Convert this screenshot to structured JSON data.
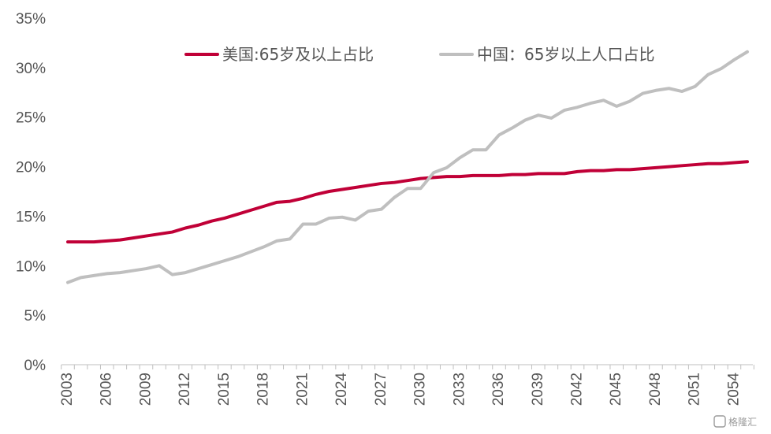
{
  "chart_data": {
    "type": "line",
    "title": "",
    "xlabel": "",
    "ylabel": "",
    "x": [
      2003,
      2004,
      2005,
      2006,
      2007,
      2008,
      2009,
      2010,
      2011,
      2012,
      2013,
      2014,
      2015,
      2016,
      2017,
      2018,
      2019,
      2020,
      2021,
      2022,
      2023,
      2024,
      2025,
      2026,
      2027,
      2028,
      2029,
      2030,
      2031,
      2032,
      2033,
      2034,
      2035,
      2036,
      2037,
      2038,
      2039,
      2040,
      2041,
      2042,
      2043,
      2044,
      2045,
      2046,
      2047,
      2048,
      2049,
      2050,
      2051,
      2052,
      2053,
      2054,
      2055
    ],
    "xticks": [
      "2003",
      "2006",
      "2009",
      "2012",
      "2015",
      "2018",
      "2021",
      "2024",
      "2027",
      "2030",
      "2033",
      "2036",
      "2039",
      "2042",
      "2045",
      "2048",
      "2051",
      "2054"
    ],
    "yticks": [
      "0%",
      "5%",
      "10%",
      "15%",
      "20%",
      "25%",
      "30%",
      "35%"
    ],
    "ylim": [
      0,
      35
    ],
    "grid": false,
    "legend_position": "top",
    "series": [
      {
        "name": "美国:65岁及以上占比",
        "color": "#C00037",
        "values": [
          12.4,
          12.4,
          12.4,
          12.5,
          12.6,
          12.8,
          13.0,
          13.2,
          13.4,
          13.8,
          14.1,
          14.5,
          14.8,
          15.2,
          15.6,
          16.0,
          16.4,
          16.5,
          16.8,
          17.2,
          17.5,
          17.7,
          17.9,
          18.1,
          18.3,
          18.4,
          18.6,
          18.8,
          18.9,
          19.0,
          19.0,
          19.1,
          19.1,
          19.1,
          19.2,
          19.2,
          19.3,
          19.3,
          19.3,
          19.5,
          19.6,
          19.6,
          19.7,
          19.7,
          19.8,
          19.9,
          20.0,
          20.1,
          20.2,
          20.3,
          20.3,
          20.4,
          20.5
        ]
      },
      {
        "name": "中国：65岁以上人口占比",
        "color": "#BFBFBF",
        "values": [
          8.3,
          8.8,
          9.0,
          9.2,
          9.3,
          9.5,
          9.7,
          10.0,
          9.1,
          9.3,
          9.7,
          10.1,
          10.5,
          10.9,
          11.4,
          11.9,
          12.5,
          12.7,
          14.2,
          14.2,
          14.8,
          14.9,
          14.6,
          15.5,
          15.7,
          16.9,
          17.8,
          17.8,
          19.4,
          19.9,
          20.9,
          21.7,
          21.7,
          23.2,
          23.9,
          24.7,
          25.2,
          24.9,
          25.7,
          26.0,
          26.4,
          26.7,
          26.1,
          26.6,
          27.4,
          27.7,
          27.9,
          27.6,
          28.1,
          29.3,
          29.9,
          30.8,
          31.6
        ]
      }
    ]
  },
  "watermark": {
    "text": "格隆汇"
  }
}
